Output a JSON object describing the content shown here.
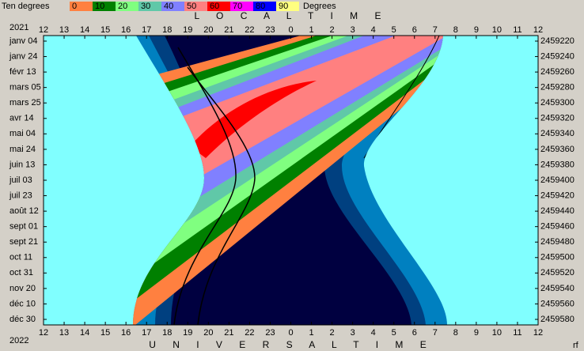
{
  "chart_data": {
    "type": "visibility",
    "legend_title": "Ten degrees",
    "legend_unit": "Degrees",
    "legend": [
      {
        "label": 0,
        "color": "#ff8040"
      },
      {
        "label": 10,
        "color": "#008000"
      },
      {
        "label": 20,
        "color": "#80ff80"
      },
      {
        "label": 30,
        "color": "#60c8a8"
      },
      {
        "label": 40,
        "color": "#8080ff"
      },
      {
        "label": 50,
        "color": "#ff8080"
      },
      {
        "label": 60,
        "color": "#ff0000"
      },
      {
        "label": 70,
        "color": "#ff00ff"
      },
      {
        "label": 80,
        "color": "#0000ff"
      },
      {
        "label": 90,
        "color": "#ffff80"
      }
    ],
    "top_axis_label": "L O C A L   T I M E",
    "bottom_axis_label": "U N I V E R S A L   T I M E",
    "start_year": "2021",
    "end_year": "2022",
    "corner_note": "rf",
    "hours": [
      12,
      13,
      14,
      15,
      16,
      17,
      18,
      19,
      20,
      21,
      22,
      23,
      0,
      1,
      2,
      3,
      4,
      5,
      6,
      7,
      8,
      9,
      10,
      11,
      12
    ],
    "dates": [
      "janv 04",
      "janv 24",
      "févr 13",
      "mars 05",
      "mars 25",
      "avr 14",
      "mai 04",
      "mai 24",
      "juin 13",
      "juil 03",
      "juil 23",
      "août 12",
      "sept 01",
      "sept 21",
      "oct 11",
      "oct 31",
      "nov 20",
      "déc 10",
      "déc 30"
    ],
    "julian_days": [
      2459220,
      2459240,
      2459260,
      2459280,
      2459300,
      2459320,
      2459340,
      2459360,
      2459380,
      2459400,
      2459420,
      2459440,
      2459460,
      2459480,
      2459500,
      2459520,
      2459540,
      2459560,
      2459580
    ]
  }
}
